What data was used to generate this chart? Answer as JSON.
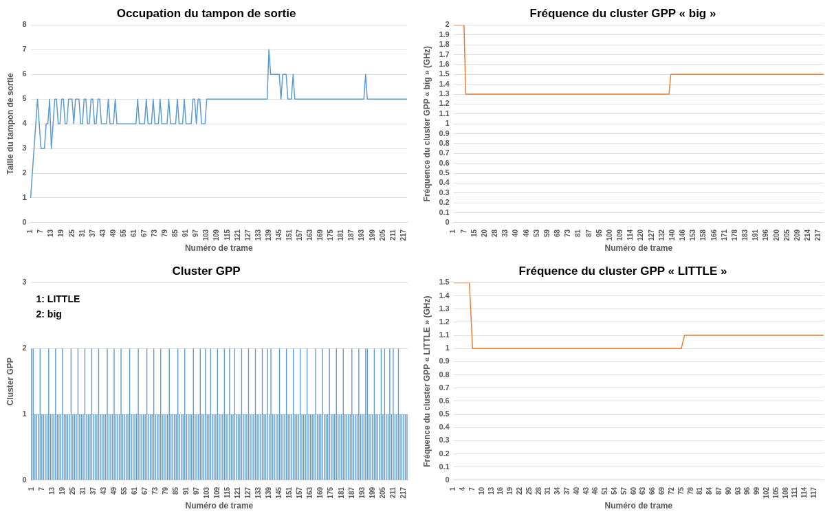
{
  "chart_data": [
    {
      "type": "line",
      "title": "Occupation du tampon de sortie",
      "xlabel": "Numéro de trame",
      "ylabel": "Taille du tampon de sortie",
      "color": "#5b9bd5",
      "ylim": [
        0,
        8
      ],
      "yticks": [
        0,
        1,
        2,
        3,
        4,
        5,
        6,
        7,
        8
      ],
      "grid": "y",
      "categories": [
        "1",
        null,
        null,
        null,
        null,
        null,
        "7",
        null,
        null,
        null,
        null,
        null,
        "13",
        null,
        null,
        null,
        null,
        null,
        "19",
        null,
        null,
        null,
        null,
        null,
        "25",
        null,
        null,
        null,
        null,
        null,
        "31",
        null,
        null,
        null,
        null,
        null,
        "37",
        null,
        null,
        null,
        null,
        null,
        "43",
        null,
        null,
        null,
        null,
        null,
        "49",
        null,
        null,
        null,
        null,
        null,
        "55",
        null,
        null,
        null,
        null,
        null,
        "61",
        null,
        null,
        null,
        null,
        null,
        "67",
        null,
        null,
        null,
        null,
        null,
        "73",
        null,
        null,
        null,
        null,
        null,
        "79",
        null,
        null,
        null,
        null,
        null,
        "85",
        null,
        null,
        null,
        null,
        null,
        "91",
        null,
        null,
        null,
        null,
        null,
        "97",
        null,
        null,
        null,
        null,
        null,
        "103",
        null,
        null,
        null,
        null,
        null,
        "109",
        null,
        null,
        null,
        null,
        null,
        "115",
        null,
        null,
        null,
        null,
        null,
        "121",
        null,
        null,
        null,
        null,
        null,
        "127",
        null,
        null,
        null,
        null,
        null,
        "133",
        null,
        null,
        null,
        null,
        null,
        "139",
        null,
        null,
        null,
        null,
        null,
        "145",
        null,
        null,
        null,
        null,
        null,
        "151",
        null,
        null,
        null,
        null,
        null,
        "157",
        null,
        null,
        null,
        null,
        null,
        "163",
        null,
        null,
        null,
        null,
        null,
        "169",
        null,
        null,
        null,
        null,
        null,
        "175",
        null,
        null,
        null,
        null,
        null,
        "181",
        null,
        null,
        null,
        null,
        null,
        "187",
        null,
        null,
        null,
        null,
        null,
        "193",
        null,
        null,
        null,
        null,
        null,
        "199",
        null,
        null,
        null,
        null,
        null,
        "205",
        null,
        null,
        null,
        null,
        null,
        "211",
        null,
        null,
        null,
        null,
        null,
        "217",
        null,
        null
      ],
      "values": [
        1,
        2,
        3,
        4,
        5,
        4,
        3,
        3,
        3,
        4,
        4,
        5,
        3,
        4,
        5,
        5,
        4,
        4,
        5,
        5,
        4,
        4,
        5,
        5,
        5,
        4,
        5,
        5,
        5,
        4,
        4,
        5,
        5,
        4,
        4,
        5,
        5,
        4,
        4,
        5,
        5,
        4,
        4,
        4,
        4,
        5,
        4,
        4,
        4,
        5,
        4,
        4,
        4,
        4,
        4,
        4,
        4,
        4,
        4,
        4,
        4,
        4,
        5,
        4,
        4,
        4,
        4,
        5,
        4,
        4,
        4,
        5,
        4,
        4,
        4,
        5,
        4,
        4,
        4,
        4,
        5,
        4,
        4,
        4,
        4,
        5,
        4,
        4,
        4,
        5,
        4,
        4,
        4,
        4,
        5,
        5,
        4,
        5,
        5,
        4,
        4,
        4,
        5,
        5,
        5,
        5,
        5,
        5,
        5,
        5,
        5,
        5,
        5,
        5,
        5,
        5,
        5,
        5,
        5,
        5,
        5,
        5,
        5,
        5,
        5,
        5,
        5,
        5,
        5,
        5,
        5,
        5,
        5,
        5,
        5,
        5,
        5,
        5,
        7,
        6,
        6,
        6,
        6,
        6,
        6,
        5,
        6,
        6,
        6,
        5,
        5,
        5,
        6,
        5,
        5,
        5,
        5,
        5,
        5,
        5,
        5,
        5,
        5,
        5,
        5,
        5,
        5,
        5,
        5,
        5,
        5,
        5,
        5,
        5,
        5,
        5,
        5,
        5,
        5,
        5,
        5,
        5,
        5,
        5,
        5,
        5,
        5,
        5,
        5,
        5,
        5,
        5,
        5,
        5,
        6,
        5,
        5,
        5,
        5,
        5,
        5,
        5,
        5,
        5,
        5,
        5,
        5,
        5,
        5,
        5,
        5,
        5,
        5,
        5,
        5,
        5,
        5,
        5,
        5
      ]
    },
    {
      "type": "line",
      "title": "Fréquence du cluster GPP « big »",
      "xlabel": "Numéro de trame",
      "ylabel": "Fréquence du cluster GPP « big » (GHz)",
      "color": "#ed7d31",
      "ylim": [
        0,
        2
      ],
      "yticks": [
        0,
        0.1,
        0.2,
        0.3,
        0.4,
        0.5,
        0.6,
        0.7,
        0.8,
        0.9,
        1,
        1.1,
        1.2,
        1.3,
        1.4,
        1.5,
        1.6,
        1.7,
        1.8,
        1.9,
        2
      ],
      "grid": "y",
      "categories": [
        "1",
        null,
        null,
        null,
        null,
        null,
        "7",
        null,
        null,
        null,
        null,
        null,
        "15",
        null,
        null,
        null,
        null,
        null,
        "20",
        null,
        null,
        null,
        null,
        null,
        "28",
        null,
        null,
        null,
        null,
        null,
        "33",
        null,
        null,
        null,
        null,
        null,
        "40",
        null,
        null,
        null,
        null,
        null,
        "46",
        null,
        null,
        null,
        null,
        null,
        "53",
        null,
        null,
        null,
        null,
        null,
        "59",
        null,
        null,
        null,
        null,
        null,
        "68",
        null,
        null,
        null,
        null,
        null,
        "73",
        null,
        null,
        null,
        null,
        null,
        "81",
        null,
        null,
        null,
        null,
        null,
        "87",
        null,
        null,
        null,
        null,
        null,
        "95",
        null,
        null,
        null,
        null,
        null,
        "100",
        null,
        null,
        null,
        null,
        null,
        "109",
        null,
        null,
        null,
        null,
        null,
        "114",
        null,
        null,
        null,
        null,
        null,
        "120",
        null,
        null,
        null,
        null,
        null,
        "127",
        null,
        null,
        null,
        null,
        null,
        "132",
        null,
        null,
        null,
        null,
        null,
        "140",
        null,
        null,
        null,
        null,
        null,
        "146",
        null,
        null,
        null,
        null,
        null,
        "153",
        null,
        null,
        null,
        null,
        null,
        "158",
        null,
        null,
        null,
        null,
        null,
        "166",
        null,
        null,
        null,
        null,
        null,
        "171",
        null,
        null,
        null,
        null,
        null,
        "178",
        null,
        null,
        null,
        null,
        null,
        "183",
        null,
        null,
        null,
        null,
        null,
        "191",
        null,
        null,
        null,
        null,
        null,
        "196",
        null,
        null,
        null,
        null,
        null,
        "200",
        null,
        null,
        null,
        null,
        null,
        "205",
        null,
        null,
        null,
        null,
        null,
        "209",
        null,
        null,
        null,
        null,
        null,
        "214",
        null,
        null,
        null,
        null,
        null,
        "217",
        null,
        null,
        null
      ],
      "values": [
        2,
        2,
        2,
        2,
        2,
        2,
        2,
        1.3,
        1.3,
        1.3,
        1.3,
        1.3,
        1.3,
        1.3,
        1.3,
        1.3,
        1.3,
        1.3,
        1.3,
        1.3,
        1.3,
        1.3,
        1.3,
        1.3,
        1.3,
        1.3,
        1.3,
        1.3,
        1.3,
        1.3,
        1.3,
        1.3,
        1.3,
        1.3,
        1.3,
        1.3,
        1.3,
        1.3,
        1.3,
        1.3,
        1.3,
        1.3,
        1.3,
        1.3,
        1.3,
        1.3,
        1.3,
        1.3,
        1.3,
        1.3,
        1.3,
        1.3,
        1.3,
        1.3,
        1.3,
        1.3,
        1.3,
        1.3,
        1.3,
        1.3,
        1.3,
        1.3,
        1.3,
        1.3,
        1.3,
        1.3,
        1.3,
        1.3,
        1.3,
        1.3,
        1.3,
        1.3,
        1.3,
        1.3,
        1.3,
        1.3,
        1.3,
        1.3,
        1.3,
        1.3,
        1.3,
        1.3,
        1.3,
        1.3,
        1.3,
        1.3,
        1.3,
        1.3,
        1.3,
        1.3,
        1.3,
        1.3,
        1.3,
        1.3,
        1.3,
        1.3,
        1.3,
        1.3,
        1.3,
        1.3,
        1.3,
        1.3,
        1.3,
        1.3,
        1.3,
        1.3,
        1.3,
        1.3,
        1.3,
        1.3,
        1.3,
        1.3,
        1.3,
        1.3,
        1.3,
        1.3,
        1.3,
        1.3,
        1.3,
        1.3,
        1.3,
        1.3,
        1.3,
        1.3,
        1.3,
        1.5,
        1.5,
        1.5,
        1.5,
        1.5,
        1.5,
        1.5,
        1.5,
        1.5,
        1.5,
        1.5,
        1.5,
        1.5,
        1.5,
        1.5,
        1.5,
        1.5,
        1.5,
        1.5,
        1.5,
        1.5,
        1.5,
        1.5,
        1.5,
        1.5,
        1.5,
        1.5,
        1.5,
        1.5,
        1.5,
        1.5,
        1.5,
        1.5,
        1.5,
        1.5,
        1.5,
        1.5,
        1.5,
        1.5,
        1.5,
        1.5,
        1.5,
        1.5,
        1.5,
        1.5,
        1.5,
        1.5,
        1.5,
        1.5,
        1.5,
        1.5,
        1.5,
        1.5,
        1.5,
        1.5,
        1.5,
        1.5,
        1.5,
        1.5,
        1.5,
        1.5,
        1.5,
        1.5,
        1.5,
        1.5,
        1.5,
        1.5,
        1.5,
        1.5,
        1.5,
        1.5,
        1.5,
        1.5,
        1.5,
        1.5,
        1.5,
        1.5,
        1.5,
        1.5,
        1.5,
        1.5,
        1.5,
        1.5,
        1.5,
        1.5,
        1.5,
        1.5,
        1.5,
        1.5
      ]
    },
    {
      "type": "bar",
      "title": "Cluster GPP",
      "xlabel": "Numéro de trame",
      "ylabel": "Cluster GPP",
      "color": "#5b9bd5",
      "ylim": [
        0,
        3
      ],
      "yticks": [
        0,
        1,
        2,
        3
      ],
      "grid": "y",
      "annotations": [
        "1: LITTLE",
        "2: big"
      ],
      "categories": [
        "1",
        null,
        null,
        null,
        null,
        null,
        "7",
        null,
        null,
        null,
        null,
        null,
        "13",
        null,
        null,
        null,
        null,
        null,
        "19",
        null,
        null,
        null,
        null,
        null,
        "25",
        null,
        null,
        null,
        null,
        null,
        "31",
        null,
        null,
        null,
        null,
        null,
        "37",
        null,
        null,
        null,
        null,
        null,
        "43",
        null,
        null,
        null,
        null,
        null,
        "49",
        null,
        null,
        null,
        null,
        null,
        "55",
        null,
        null,
        null,
        null,
        null,
        "61",
        null,
        null,
        null,
        null,
        null,
        "67",
        null,
        null,
        null,
        null,
        null,
        "73",
        null,
        null,
        null,
        null,
        null,
        "79",
        null,
        null,
        null,
        null,
        null,
        "85",
        null,
        null,
        null,
        null,
        null,
        "91",
        null,
        null,
        null,
        null,
        null,
        "97",
        null,
        null,
        null,
        null,
        null,
        "103",
        null,
        null,
        null,
        null,
        null,
        "109",
        null,
        null,
        null,
        null,
        null,
        "115",
        null,
        null,
        null,
        null,
        null,
        "121",
        null,
        null,
        null,
        null,
        null,
        "127",
        null,
        null,
        null,
        null,
        null,
        "133",
        null,
        null,
        null,
        null,
        null,
        "139",
        null,
        null,
        null,
        null,
        null,
        "145",
        null,
        null,
        null,
        null,
        null,
        "151",
        null,
        null,
        null,
        null,
        null,
        "157",
        null,
        null,
        null,
        null,
        null,
        "163",
        null,
        null,
        null,
        null,
        null,
        "169",
        null,
        null,
        null,
        null,
        null,
        "175",
        null,
        null,
        null,
        null,
        null,
        "181",
        null,
        null,
        null,
        null,
        null,
        "187",
        null,
        null,
        null,
        null,
        null,
        "193",
        null,
        null,
        null,
        null,
        null,
        "199",
        null,
        null,
        null,
        null,
        null,
        "205",
        null,
        null,
        null,
        null,
        null,
        "211",
        null,
        null,
        null,
        null,
        null,
        "217",
        null,
        null
      ],
      "values": [
        2,
        2,
        1,
        1,
        1,
        2,
        1,
        1,
        1,
        1,
        2,
        1,
        1,
        1,
        2,
        1,
        1,
        1,
        2,
        1,
        1,
        1,
        1,
        2,
        1,
        1,
        1,
        2,
        1,
        1,
        1,
        2,
        1,
        1,
        1,
        2,
        1,
        1,
        1,
        2,
        1,
        1,
        1,
        1,
        2,
        1,
        1,
        1,
        2,
        1,
        1,
        1,
        2,
        1,
        1,
        1,
        1,
        2,
        1,
        1,
        1,
        1,
        2,
        1,
        1,
        1,
        1,
        2,
        1,
        1,
        1,
        2,
        1,
        1,
        1,
        2,
        1,
        1,
        1,
        1,
        2,
        1,
        1,
        1,
        1,
        2,
        1,
        1,
        1,
        2,
        1,
        1,
        1,
        1,
        2,
        1,
        1,
        1,
        2,
        1,
        1,
        2,
        1,
        1,
        2,
        1,
        1,
        1,
        2,
        1,
        1,
        1,
        2,
        1,
        1,
        2,
        1,
        1,
        2,
        1,
        1,
        1,
        2,
        1,
        1,
        1,
        2,
        1,
        1,
        1,
        2,
        1,
        1,
        1,
        2,
        1,
        1,
        2,
        1,
        2,
        1,
        1,
        1,
        1,
        2,
        1,
        1,
        1,
        2,
        1,
        1,
        1,
        2,
        1,
        1,
        1,
        2,
        1,
        1,
        1,
        2,
        1,
        1,
        1,
        1,
        2,
        1,
        1,
        1,
        2,
        1,
        1,
        1,
        2,
        1,
        1,
        1,
        2,
        1,
        1,
        1,
        2,
        1,
        1,
        1,
        1,
        2,
        1,
        1,
        1,
        2,
        1,
        1,
        1,
        2,
        2,
        1,
        1,
        1,
        2,
        1,
        1,
        1,
        2,
        1,
        2,
        1,
        1,
        2,
        1,
        2,
        1,
        1,
        2,
        1,
        1,
        1,
        1,
        1
      ]
    },
    {
      "type": "line",
      "title": "Fréquence du cluster GPP « LITTLE »",
      "xlabel": "Numéro de trame",
      "ylabel": "Fréquence du cluster GPP « LITTLE » (GHz)",
      "color": "#ed7d31",
      "ylim": [
        0,
        1.5
      ],
      "yticks": [
        0,
        0.1,
        0.2,
        0.3,
        0.4,
        0.5,
        0.6,
        0.7,
        0.8,
        0.9,
        1,
        1.1,
        1.2,
        1.3,
        1.4,
        1.5
      ],
      "grid": "y",
      "categories": [
        "1",
        null,
        null,
        "4",
        null,
        null,
        "7",
        null,
        null,
        "10",
        null,
        null,
        "13",
        null,
        null,
        "16",
        null,
        null,
        "19",
        null,
        null,
        "22",
        null,
        null,
        "25",
        null,
        null,
        "28",
        null,
        null,
        "31",
        null,
        null,
        "34",
        null,
        null,
        "37",
        null,
        null,
        "40",
        null,
        null,
        "43",
        null,
        null,
        "46",
        null,
        null,
        "51",
        null,
        null,
        "54",
        null,
        null,
        "57",
        null,
        null,
        "60",
        null,
        null,
        "63",
        null,
        null,
        "66",
        null,
        null,
        "69",
        null,
        null,
        "72",
        null,
        null,
        "75",
        null,
        null,
        "78",
        null,
        null,
        "81",
        null,
        null,
        "84",
        null,
        null,
        "87",
        null,
        null,
        "90",
        null,
        null,
        "93",
        null,
        null,
        "96",
        null,
        null,
        "99",
        null,
        null,
        "102",
        null,
        null,
        "105",
        null,
        null,
        "108",
        null,
        null,
        "111",
        null,
        null,
        "114",
        null,
        null,
        "117",
        null,
        null,
        null
      ],
      "values": [
        1.5,
        1.5,
        1.5,
        1.5,
        1.5,
        1.5,
        1,
        1,
        1,
        1,
        1,
        1,
        1,
        1,
        1,
        1,
        1,
        1,
        1,
        1,
        1,
        1,
        1,
        1,
        1,
        1,
        1,
        1,
        1,
        1,
        1,
        1,
        1,
        1,
        1,
        1,
        1,
        1,
        1,
        1,
        1,
        1,
        1,
        1,
        1,
        1,
        1,
        1,
        1,
        1,
        1,
        1,
        1,
        1,
        1,
        1,
        1,
        1,
        1,
        1,
        1,
        1,
        1,
        1,
        1,
        1,
        1,
        1,
        1,
        1,
        1,
        1,
        1,
        1.1,
        1.1,
        1.1,
        1.1,
        1.1,
        1.1,
        1.1,
        1.1,
        1.1,
        1.1,
        1.1,
        1.1,
        1.1,
        1.1,
        1.1,
        1.1,
        1.1,
        1.1,
        1.1,
        1.1,
        1.1,
        1.1,
        1.1,
        1.1,
        1.1,
        1.1,
        1.1,
        1.1,
        1.1,
        1.1,
        1.1,
        1.1,
        1.1,
        1.1,
        1.1,
        1.1,
        1.1,
        1.1,
        1.1,
        1.1,
        1.1,
        1.1,
        1.1,
        1.1,
        1.1
      ]
    }
  ]
}
